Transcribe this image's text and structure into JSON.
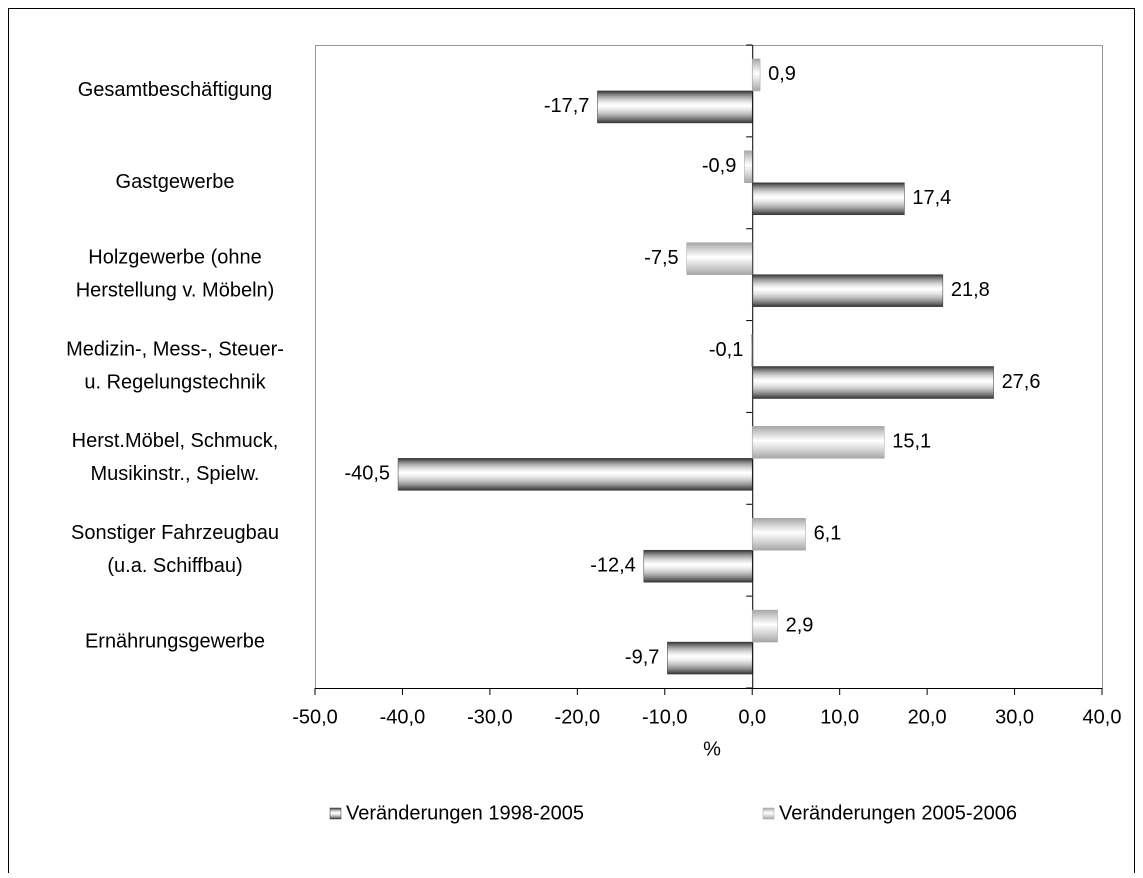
{
  "chart_data": {
    "type": "bar",
    "orientation": "horizontal",
    "categories": [
      [
        "Gesamtbeschäftigung"
      ],
      [
        "Gastgewerbe"
      ],
      [
        "Holzgewerbe (ohne",
        "Herstellung v. Möbeln)"
      ],
      [
        "Medizin-, Mess-, Steuer-",
        "u. Regelungstechnik"
      ],
      [
        "Herst.Möbel, Schmuck,",
        "Musikinstr., Spielw."
      ],
      [
        "Sonstiger Fahrzeugbau",
        "(u.a. Schiffbau)"
      ],
      [
        "Ernährungsgewerbe"
      ]
    ],
    "series": [
      {
        "name": "Veränderungen 1998-2005",
        "color": "#333333",
        "values": [
          -17.7,
          17.4,
          21.8,
          27.6,
          -40.5,
          -12.4,
          -9.7
        ],
        "value_labels": [
          "-17,7",
          "17,4",
          "21,8",
          "27,6",
          "-40,5",
          "-12,4",
          "-9,7"
        ]
      },
      {
        "name": "Veränderungen 2005-2006",
        "color": "#a6a6a6",
        "values": [
          0.9,
          -0.9,
          -7.5,
          -0.1,
          15.1,
          6.1,
          2.9
        ],
        "value_labels": [
          "0,9",
          "-0,9",
          "-7,5",
          "-0,1",
          "15,1",
          "6,1",
          "2,9"
        ]
      }
    ],
    "xlabel": "%",
    "xlim": [
      -50,
      40
    ],
    "xticks": [
      {
        "value": -50,
        "label": "-50,0"
      },
      {
        "value": -40,
        "label": "-40,0"
      },
      {
        "value": -30,
        "label": "-30,0"
      },
      {
        "value": -20,
        "label": "-20,0"
      },
      {
        "value": -10,
        "label": "-10,0"
      },
      {
        "value": 0,
        "label": "0,0"
      },
      {
        "value": 10,
        "label": "10,0"
      },
      {
        "value": 20,
        "label": "20,0"
      },
      {
        "value": 30,
        "label": "30,0"
      },
      {
        "value": 40,
        "label": "40,0"
      }
    ],
    "grid": false,
    "legend": "bottom"
  }
}
